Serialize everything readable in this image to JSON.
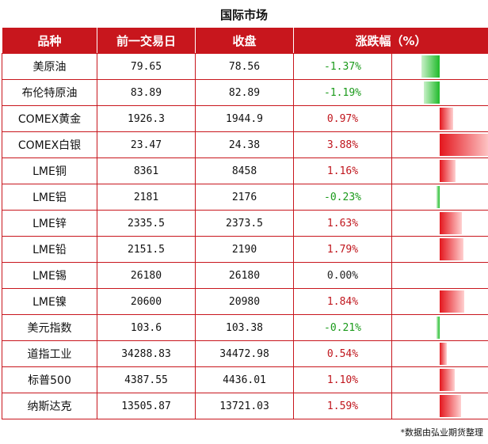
{
  "title": "国际市场",
  "headers": [
    "品种",
    "前一交易日",
    "收盘",
    "涨跌幅（%）"
  ],
  "rows": [
    {
      "name": "美原油",
      "prev": "79.65",
      "close": "78.56",
      "change": "-1.37%",
      "pct": -1.37
    },
    {
      "name": "布伦特原油",
      "prev": "83.89",
      "close": "82.89",
      "change": "-1.19%",
      "pct": -1.19
    },
    {
      "name": "COMEX黄金",
      "prev": "1926.3",
      "close": "1944.9",
      "change": "0.97%",
      "pct": 0.97
    },
    {
      "name": "COMEX白银",
      "prev": "23.47",
      "close": "24.38",
      "change": "3.88%",
      "pct": 3.88
    },
    {
      "name": "LME铜",
      "prev": "8361",
      "close": "8458",
      "change": "1.16%",
      "pct": 1.16
    },
    {
      "name": "LME铝",
      "prev": "2181",
      "close": "2176",
      "change": "-0.23%",
      "pct": -0.23
    },
    {
      "name": "LME锌",
      "prev": "2335.5",
      "close": "2373.5",
      "change": "1.63%",
      "pct": 1.63
    },
    {
      "name": "LME铅",
      "prev": "2151.5",
      "close": "2190",
      "change": "1.79%",
      "pct": 1.79
    },
    {
      "name": "LME锡",
      "prev": "26180",
      "close": "26180",
      "change": "0.00%",
      "pct": 0.0
    },
    {
      "name": "LME镍",
      "prev": "20600",
      "close": "20980",
      "change": "1.84%",
      "pct": 1.84
    },
    {
      "name": "美元指数",
      "prev": "103.6",
      "close": "103.38",
      "change": "-0.21%",
      "pct": -0.21
    },
    {
      "name": "道指工业",
      "prev": "34288.83",
      "close": "34472.98",
      "change": "0.54%",
      "pct": 0.54
    },
    {
      "name": "标普500",
      "prev": "4387.55",
      "close": "4436.01",
      "change": "1.10%",
      "pct": 1.1
    },
    {
      "name": "纳斯达克",
      "prev": "13505.87",
      "close": "13721.03",
      "change": "1.59%",
      "pct": 1.59
    }
  ],
  "note": "*数据由弘业期货整理",
  "colors": {
    "header_bg": "#c8161d",
    "up": "#e4161d",
    "down": "#1fbb2a"
  }
}
